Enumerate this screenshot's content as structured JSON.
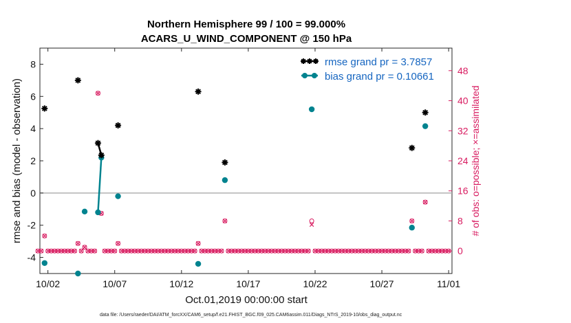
{
  "chart_data": {
    "type": "scatter",
    "title_line1": "Northern Hemisphere 99 / 100 = 99.000%",
    "title_line2": "ACARS_U_WIND_COMPONENT @ 150 hPa",
    "ylabel_left": "rmse and bias (model - observation)",
    "ylabel_right": "# of obs: o=possible; ×=assimilated",
    "xlabel": "Oct.01,2019 00:00:00 start",
    "footnote": "data file: /Users/raeder/DAI/ATM_forcXX/CAM6_setup/f.e21.FHIST_BGC.f09_025.CAM6assim.011/Diags_NTrS_2019-10/obs_diag_output.nc",
    "x_ticks": [
      {
        "label": "10/02",
        "day": 2
      },
      {
        "label": "10/07",
        "day": 7
      },
      {
        "label": "10/12",
        "day": 12
      },
      {
        "label": "10/17",
        "day": 17
      },
      {
        "label": "10/22",
        "day": 22
      },
      {
        "label": "10/27",
        "day": 27
      },
      {
        "label": "11/01",
        "day": 32
      }
    ],
    "xlim": [
      1.4,
      32.25
    ],
    "ylim_left": [
      -5,
      9
    ],
    "y_ticks_left": [
      "-4",
      "-2",
      "0",
      "2",
      "4",
      "6",
      "8"
    ],
    "ylim_right": [
      -6,
      54
    ],
    "y_ticks_right": [
      "0",
      "8",
      "16",
      "24",
      "32",
      "40",
      "48"
    ],
    "legend": [
      {
        "label": "rmse grand pr = 3.7857",
        "color": "#000000"
      },
      {
        "label": "bias grand pr = 0.10661",
        "color": "#00838f"
      }
    ],
    "colors": {
      "rmse": "#000000",
      "bias": "#00838f",
      "obs": "#d81b60",
      "zero_line": "#b0b0b0"
    },
    "rmse": [
      {
        "day": 1.75,
        "value": 5.25
      },
      {
        "day": 4.25,
        "value": 7.0
      },
      {
        "day": 5.75,
        "value": 3.1
      },
      {
        "day": 6.0,
        "value": 2.35
      },
      {
        "day": 7.25,
        "value": 4.2
      },
      {
        "day": 13.25,
        "value": 6.3
      },
      {
        "day": 15.25,
        "value": 1.9
      },
      {
        "day": 29.25,
        "value": 2.8
      },
      {
        "day": 30.25,
        "value": 5.0
      }
    ],
    "rmse_line": [
      {
        "day": 5.75,
        "value": 3.1
      },
      {
        "day": 6.0,
        "value": 2.35
      }
    ],
    "bias": [
      {
        "day": 1.75,
        "value": -4.35
      },
      {
        "day": 4.25,
        "value": -5.0
      },
      {
        "day": 4.75,
        "value": -1.15
      },
      {
        "day": 5.75,
        "value": -1.2
      },
      {
        "day": 6.0,
        "value": 2.2
      },
      {
        "day": 7.25,
        "value": -0.2
      },
      {
        "day": 13.25,
        "value": -4.4
      },
      {
        "day": 15.25,
        "value": 0.8
      },
      {
        "day": 21.75,
        "value": 5.2
      },
      {
        "day": 29.25,
        "value": -2.15
      },
      {
        "day": 30.25,
        "value": 4.15
      }
    ],
    "bias_line": [
      {
        "day": 5.75,
        "value": -1.2
      },
      {
        "day": 6.0,
        "value": 2.2
      }
    ],
    "obs_zero_start": 1.25,
    "obs_zero_end": 32.0,
    "obs_zero_step": 0.25,
    "obs_counts": [
      {
        "day": 1.75,
        "possible": 4,
        "assimilated": 4
      },
      {
        "day": 4.25,
        "possible": 2,
        "assimilated": 2
      },
      {
        "day": 4.75,
        "possible": 1,
        "assimilated": 1
      },
      {
        "day": 5.75,
        "possible": 42,
        "assimilated": 42
      },
      {
        "day": 6.0,
        "possible": 10,
        "assimilated": 10
      },
      {
        "day": 7.25,
        "possible": 2,
        "assimilated": 2
      },
      {
        "day": 13.25,
        "possible": 2,
        "assimilated": 2
      },
      {
        "day": 15.25,
        "possible": 8,
        "assimilated": 8
      },
      {
        "day": 21.75,
        "possible": 8,
        "assimilated": 7
      },
      {
        "day": 29.25,
        "possible": 8,
        "assimilated": 8
      },
      {
        "day": 30.25,
        "possible": 13,
        "assimilated": 13
      }
    ],
    "grid": false
  }
}
